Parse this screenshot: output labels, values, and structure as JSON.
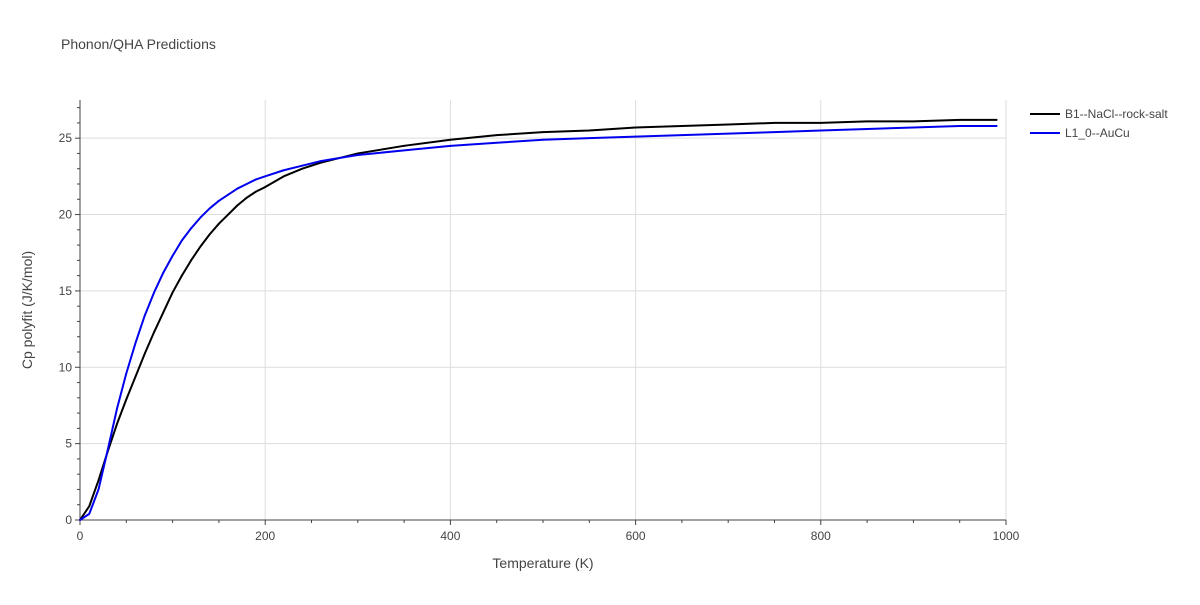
{
  "chart_data": {
    "type": "line",
    "title": "Phonon/QHA Predictions",
    "xlabel": "Temperature (K)",
    "ylabel": "Cp polyfit (J/K/mol)",
    "xlim": [
      0,
      1000
    ],
    "ylim": [
      0,
      27.5
    ],
    "xticks": [
      0,
      200,
      400,
      600,
      800,
      1000
    ],
    "yticks": [
      0,
      5,
      10,
      15,
      20,
      25
    ],
    "grid": true,
    "legend_position": "top-right",
    "series": [
      {
        "name": "B1--NaCl--rock-salt",
        "color": "#000000",
        "x": [
          0,
          10,
          20,
          30,
          40,
          50,
          60,
          70,
          80,
          90,
          100,
          110,
          120,
          130,
          140,
          150,
          160,
          170,
          180,
          190,
          200,
          220,
          240,
          260,
          280,
          300,
          350,
          400,
          450,
          500,
          550,
          600,
          650,
          700,
          750,
          800,
          850,
          900,
          950,
          990
        ],
        "y": [
          0,
          0.9,
          2.6,
          4.5,
          6.3,
          7.9,
          9.4,
          10.9,
          12.3,
          13.6,
          14.9,
          16.0,
          17.0,
          17.9,
          18.7,
          19.4,
          20.0,
          20.6,
          21.1,
          21.5,
          21.8,
          22.5,
          23.0,
          23.4,
          23.7,
          24.0,
          24.5,
          24.9,
          25.2,
          25.4,
          25.5,
          25.7,
          25.8,
          25.9,
          26.0,
          26.0,
          26.1,
          26.1,
          26.2,
          26.2
        ]
      },
      {
        "name": "L1_0--AuCu",
        "color": "#0000ee",
        "x": [
          0,
          10,
          20,
          30,
          40,
          50,
          60,
          70,
          80,
          90,
          100,
          110,
          120,
          130,
          140,
          150,
          160,
          170,
          180,
          190,
          200,
          220,
          240,
          260,
          280,
          300,
          350,
          400,
          450,
          500,
          550,
          600,
          650,
          700,
          750,
          800,
          850,
          900,
          950,
          990
        ],
        "y": [
          0,
          0.4,
          2.0,
          4.6,
          7.3,
          9.6,
          11.6,
          13.4,
          14.9,
          16.2,
          17.3,
          18.3,
          19.1,
          19.8,
          20.4,
          20.9,
          21.3,
          21.7,
          22.0,
          22.3,
          22.5,
          22.9,
          23.2,
          23.5,
          23.7,
          23.9,
          24.2,
          24.5,
          24.7,
          24.9,
          25.0,
          25.1,
          25.2,
          25.3,
          25.4,
          25.5,
          25.6,
          25.7,
          25.8,
          25.8
        ]
      }
    ]
  }
}
